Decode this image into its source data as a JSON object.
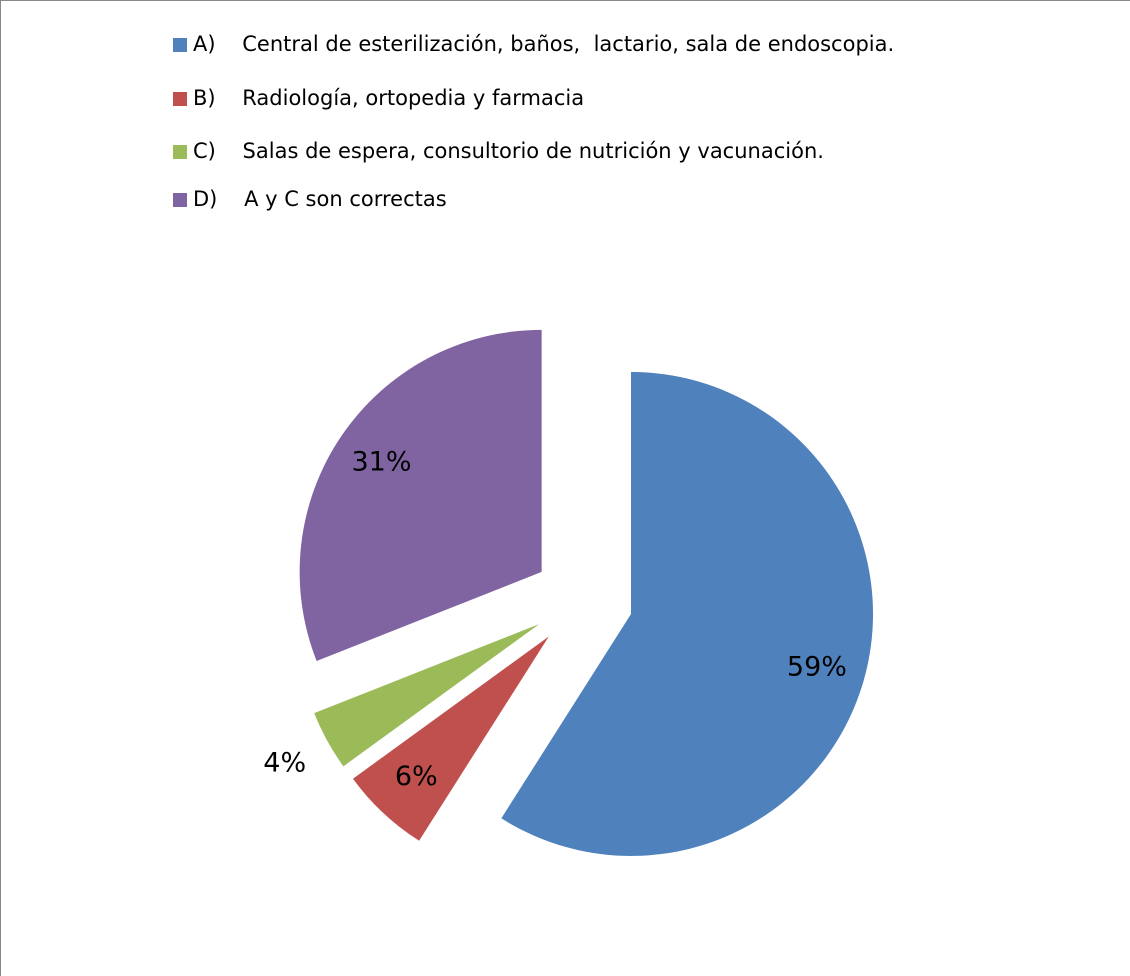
{
  "chart_data": {
    "type": "pie",
    "categories": [
      "A)    Central de esterilización, baños,  lactario, sala de endoscopia.",
      "B)    Radiología, ortopedia y farmacia",
      "C)    Salas de espera, consultorio de nutrición y vacunación.",
      "D)    A y C son correctas"
    ],
    "values": [
      59,
      6,
      4,
      31
    ],
    "value_labels": [
      "59%",
      "6%",
      "4%",
      "31%"
    ],
    "colors": [
      "#4f81bd",
      "#c0504d",
      "#9bbb59",
      "#8064a2"
    ],
    "legend": "top"
  }
}
